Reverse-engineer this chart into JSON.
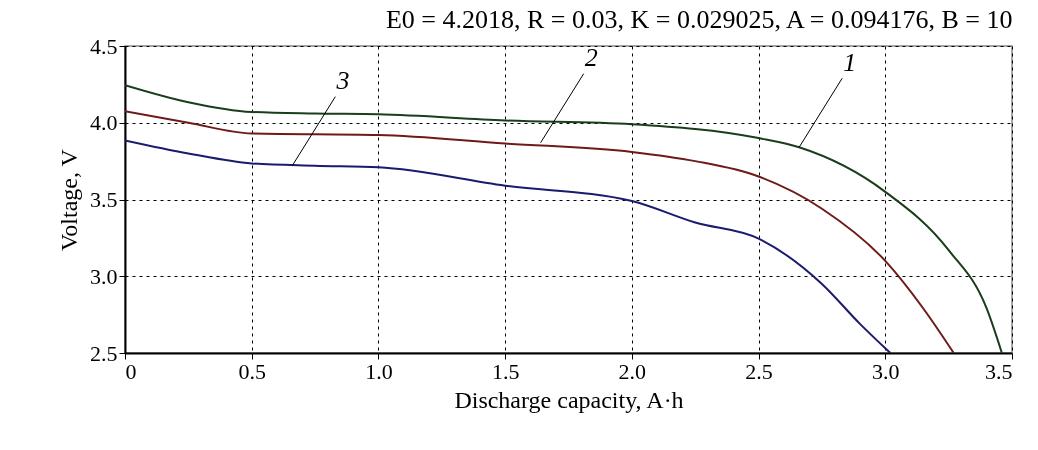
{
  "chart_data": {
    "type": "line",
    "title": "E0 = 4.2018, R = 0.03, K = 0.029025, A = 0.094176, B = 10",
    "xlabel": "Discharge capacity, A·h",
    "ylabel": "Voltage, V",
    "series": [
      {
        "color": "#1a3d1a",
        "x": [
          0,
          0.25,
          0.5,
          0.75,
          1.0,
          1.5,
          2.0,
          2.5,
          2.66,
          3.0,
          3.25,
          3.4,
          3.46
        ],
        "values": [
          4.245,
          4.134,
          4.07,
          4.06,
          4.055,
          4.015,
          3.99,
          3.9,
          3.84,
          3.55,
          3.17,
          2.79,
          2.5
        ]
      },
      {
        "color": "#6e1a1a",
        "x": [
          0,
          0.25,
          0.5,
          1.0,
          1.5,
          2.0,
          2.25,
          2.5,
          2.75,
          3.0,
          3.15,
          3.27
        ],
        "values": [
          4.075,
          4.0,
          3.93,
          3.92,
          3.865,
          3.81,
          3.75,
          3.65,
          3.44,
          3.1,
          2.79,
          2.5
        ]
      },
      {
        "color": "#1a1a6e",
        "x": [
          0,
          0.25,
          0.5,
          0.75,
          1.0,
          1.5,
          2.0,
          2.25,
          2.5,
          2.75,
          2.9,
          3.02
        ],
        "values": [
          3.885,
          3.8,
          3.735,
          3.72,
          3.71,
          3.59,
          3.49,
          3.35,
          3.245,
          2.95,
          2.69,
          2.5
        ]
      }
    ],
    "annotations": [
      {
        "text": "1",
        "x": 2.66,
        "y": 3.84
      },
      {
        "text": "2",
        "x": 1.64,
        "y": 3.87
      },
      {
        "text": "3",
        "x": 0.66,
        "y": 3.72
      }
    ],
    "xlim": [
      0,
      3.5
    ],
    "xticks": [
      0,
      0.5,
      {
        "value": 1,
        "label": "1.0"
      },
      1.5,
      {
        "value": 2,
        "label": "2.0"
      },
      2.5,
      {
        "value": 3,
        "label": "3.0"
      },
      3.5
    ],
    "ylim": [
      2.5,
      4.5
    ],
    "yticks": [
      2.5,
      {
        "value": 3,
        "label": "3.0"
      },
      3.5,
      {
        "value": 4,
        "label": "4.0"
      },
      4.5
    ],
    "grid": true,
    "line_style": "solid"
  }
}
